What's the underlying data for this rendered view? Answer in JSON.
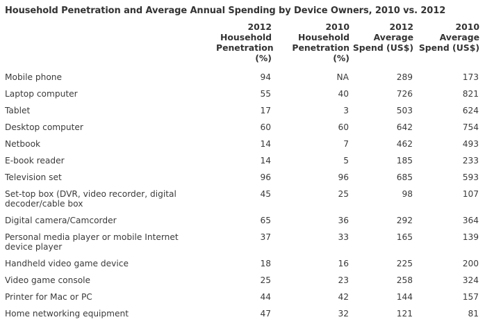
{
  "title": "Household Penetration and Average Annual Spending by Device Owners, 2010 vs. 2012",
  "table": {
    "headers": [
      "",
      "2012 Household Penetration (%)",
      "2010 Household Penetration (%)",
      "2012 Average Spend (US$)",
      "2010 Average Spend (US$)"
    ],
    "rows": [
      {
        "label": "Mobile phone",
        "pen2012": "94",
        "pen2010": "NA",
        "spend2012": "289",
        "spend2010": "173"
      },
      {
        "label": "Laptop computer",
        "pen2012": "55",
        "pen2010": "40",
        "spend2012": "726",
        "spend2010": "821"
      },
      {
        "label": "Tablet",
        "pen2012": "17",
        "pen2010": "3",
        "spend2012": "503",
        "spend2010": "624"
      },
      {
        "label": "Desktop computer",
        "pen2012": "60",
        "pen2010": "60",
        "spend2012": "642",
        "spend2010": "754"
      },
      {
        "label": "Netbook",
        "pen2012": "14",
        "pen2010": "7",
        "spend2012": "462",
        "spend2010": "493"
      },
      {
        "label": "E-book reader",
        "pen2012": "14",
        "pen2010": "5",
        "spend2012": "185",
        "spend2010": "233"
      },
      {
        "label": "Television set",
        "pen2012": "96",
        "pen2010": "96",
        "spend2012": "685",
        "spend2010": "593"
      },
      {
        "label": "Set-top box (DVR, video recorder, digital decoder/cable box",
        "pen2012": "45",
        "pen2010": "25",
        "spend2012": "98",
        "spend2010": "107"
      },
      {
        "label": "Digital camera/Camcorder",
        "pen2012": "65",
        "pen2010": "36",
        "spend2012": "292",
        "spend2010": "364"
      },
      {
        "label": "Personal media player or mobile Internet device player",
        "pen2012": "37",
        "pen2010": "33",
        "spend2012": "165",
        "spend2010": "139"
      },
      {
        "label": "Handheld video game device",
        "pen2012": "18",
        "pen2010": "16",
        "spend2012": "225",
        "spend2010": "200"
      },
      {
        "label": "Video game console",
        "pen2012": "25",
        "pen2010": "23",
        "spend2012": "258",
        "spend2010": "324"
      },
      {
        "label": "Printer for Mac or PC",
        "pen2012": "44",
        "pen2010": "42",
        "spend2012": "144",
        "spend2010": "157"
      },
      {
        "label": "Home networking equipment",
        "pen2012": "47",
        "pen2010": "32",
        "spend2012": "121",
        "spend2010": "81"
      }
    ]
  }
}
